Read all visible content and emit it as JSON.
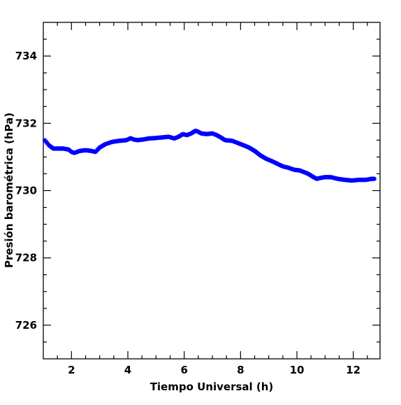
{
  "chart_data": {
    "type": "scatter",
    "xlabel": "Tiempo Universal (h)",
    "ylabel": "Presión barométrica (hPa)",
    "xlim": [
      1.0,
      12.95
    ],
    "ylim": [
      725.0,
      735.0
    ],
    "x_ticks": [
      2,
      4,
      6,
      8,
      10,
      12
    ],
    "y_ticks": [
      726,
      728,
      730,
      732,
      734
    ],
    "x_tick_labels": [
      "2",
      "4",
      "6",
      "8",
      "10",
      "12"
    ],
    "y_tick_labels": [
      "726",
      "728",
      "730",
      "732",
      "734"
    ],
    "grid": false,
    "marker": "asterisk",
    "series": [
      {
        "color": "#0000ff",
        "x": [
          1.05,
          1.2,
          1.35,
          1.5,
          1.7,
          1.9,
          2.0,
          2.1,
          2.3,
          2.5,
          2.7,
          2.85,
          3.0,
          3.2,
          3.45,
          3.7,
          3.95,
          4.1,
          4.2,
          4.35,
          4.55,
          4.75,
          4.95,
          5.2,
          5.45,
          5.65,
          5.8,
          5.95,
          6.1,
          6.25,
          6.4,
          6.5,
          6.6,
          6.8,
          7.0,
          7.15,
          7.3,
          7.45,
          7.7,
          7.95,
          8.1,
          8.3,
          8.5,
          8.7,
          8.9,
          9.1,
          9.3,
          9.5,
          9.7,
          9.9,
          10.1,
          10.25,
          10.4,
          10.55,
          10.7,
          10.85,
          11.0,
          11.2,
          11.45,
          11.7,
          11.95,
          12.2,
          12.45,
          12.65,
          12.75
        ],
        "y": [
          731.5,
          731.35,
          731.25,
          731.25,
          731.25,
          731.22,
          731.15,
          731.12,
          731.18,
          731.2,
          731.18,
          731.15,
          731.28,
          731.38,
          731.45,
          731.48,
          731.5,
          731.56,
          731.52,
          731.5,
          731.52,
          731.55,
          731.56,
          731.58,
          731.6,
          731.55,
          731.6,
          731.68,
          731.65,
          731.7,
          731.78,
          731.75,
          731.7,
          731.68,
          731.7,
          731.65,
          731.58,
          731.5,
          731.48,
          731.4,
          731.35,
          731.28,
          731.18,
          731.05,
          730.95,
          730.88,
          730.8,
          730.72,
          730.68,
          730.62,
          730.6,
          730.55,
          730.5,
          730.42,
          730.35,
          730.38,
          730.4,
          730.4,
          730.35,
          730.32,
          730.3,
          730.32,
          730.32,
          730.35,
          730.35
        ]
      }
    ]
  }
}
